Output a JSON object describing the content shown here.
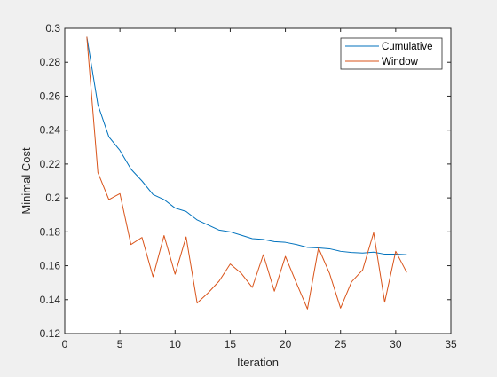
{
  "chart_data": {
    "type": "line",
    "title": "",
    "xlabel": "Iteration",
    "ylabel": "Minimal Cost",
    "xlim": [
      0,
      35
    ],
    "ylim": [
      0.12,
      0.3
    ],
    "xticks": [
      0,
      5,
      10,
      15,
      20,
      25,
      30,
      35
    ],
    "yticks": [
      0.12,
      0.14,
      0.16,
      0.18,
      0.2,
      0.22,
      0.24,
      0.26,
      0.28,
      0.3
    ],
    "xtick_labels": [
      "0",
      "5",
      "10",
      "15",
      "20",
      "25",
      "30",
      "35"
    ],
    "ytick_labels": [
      "0.12",
      "0.14",
      "0.16",
      "0.18",
      "0.2",
      "0.22",
      "0.24",
      "0.26",
      "0.28",
      "0.3"
    ],
    "grid": false,
    "legend_position": "top-right",
    "x": [
      2,
      3,
      4,
      5,
      6,
      7,
      8,
      9,
      10,
      11,
      12,
      13,
      14,
      15,
      16,
      17,
      18,
      19,
      20,
      21,
      22,
      23,
      24,
      25,
      26,
      27,
      28,
      29,
      30,
      31
    ],
    "series": [
      {
        "name": "Cumulative",
        "color": "#0072bd",
        "values": [
          0.295,
          0.255,
          0.236,
          0.228,
          0.217,
          0.21,
          0.202,
          0.199,
          0.194,
          0.192,
          0.187,
          0.184,
          0.181,
          0.18,
          0.178,
          0.176,
          0.1755,
          0.1742,
          0.1738,
          0.1725,
          0.1708,
          0.1705,
          0.17,
          0.1685,
          0.1678,
          0.1675,
          0.168,
          0.1668,
          0.1668,
          0.1665
        ]
      },
      {
        "name": "Window",
        "color": "#d95319",
        "values": [
          0.295,
          0.215,
          0.199,
          0.2025,
          0.1725,
          0.1767,
          0.1535,
          0.1778,
          0.155,
          0.177,
          0.138,
          0.144,
          0.151,
          0.161,
          0.1555,
          0.1472,
          0.1665,
          0.145,
          0.1655,
          0.1498,
          0.1345,
          0.1705,
          0.1555,
          0.135,
          0.1505,
          0.1575,
          0.1795,
          0.1385,
          0.1685,
          0.156
        ]
      }
    ]
  }
}
